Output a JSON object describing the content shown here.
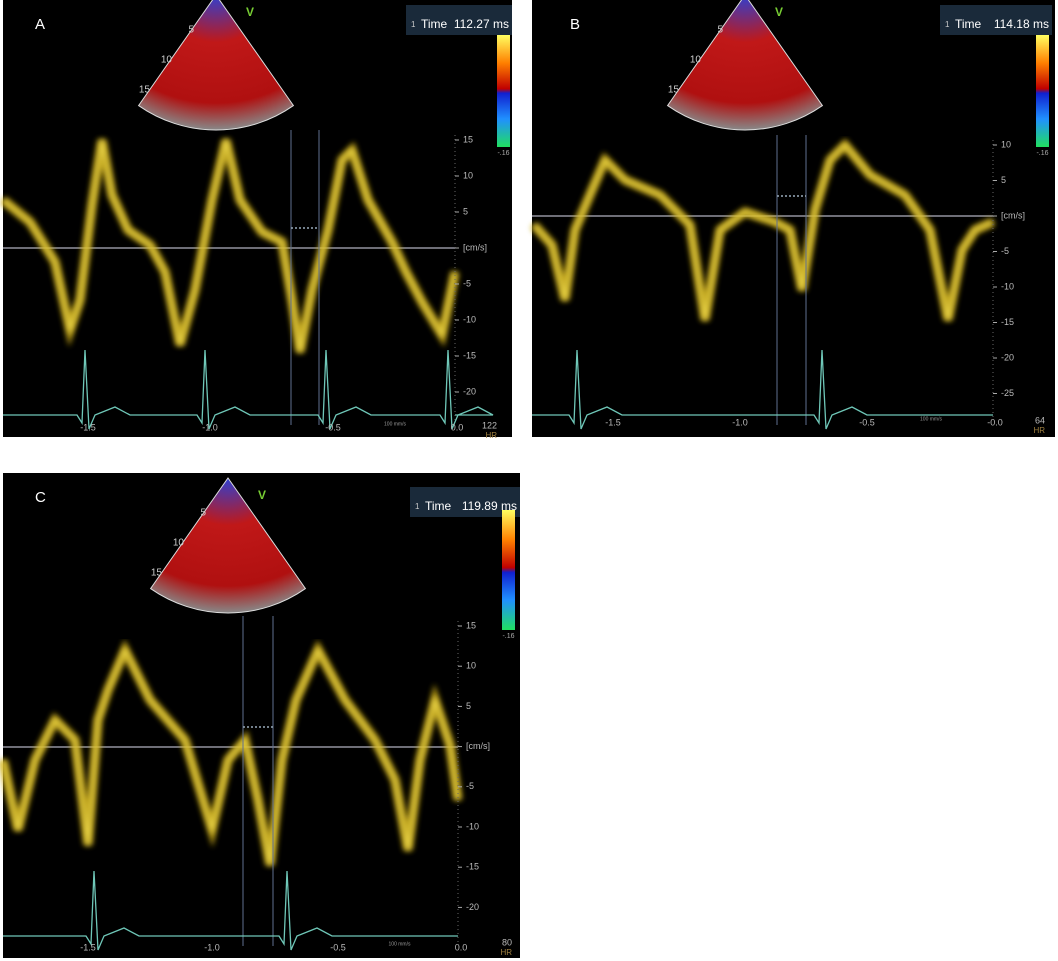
{
  "panels": [
    {
      "label": "A",
      "time_index": "1",
      "time_label": "Time",
      "time_value": "112.27 ms",
      "probe_marker": "V",
      "depth_ticks": [
        "5",
        "10",
        "15"
      ],
      "colorbar_min": "-.16",
      "y_ticks": [
        "15",
        "10",
        "5",
        "[cm/s]",
        "-5",
        "-10",
        "-15",
        "-20"
      ],
      "x_ticks": [
        "-1.5",
        "-1.0",
        "-0.5",
        "0.0"
      ],
      "sweep_speed": "100 mm/s",
      "hr_value": "122",
      "hr_label": "HR"
    },
    {
      "label": "B",
      "time_index": "1",
      "time_label": "Time",
      "time_value": "114.18 ms",
      "probe_marker": "V",
      "depth_ticks": [
        "5",
        "10",
        "15"
      ],
      "colorbar_min": "-.16",
      "y_ticks": [
        "10",
        "5",
        "[cm/s]",
        "-5",
        "-10",
        "-15",
        "-20",
        "-25"
      ],
      "x_ticks": [
        "-1.5",
        "-1.0",
        "-0.5",
        "-0.0"
      ],
      "sweep_speed": "100 mm/s",
      "hr_value": "64",
      "hr_label": "HR"
    },
    {
      "label": "C",
      "time_index": "1",
      "time_label": "Time",
      "time_value": "119.89 ms",
      "probe_marker": "V",
      "depth_ticks": [
        "5",
        "10",
        "15"
      ],
      "colorbar_min": "-.16",
      "y_ticks": [
        "15",
        "10",
        "5",
        "[cm/s]",
        "-5",
        "-10",
        "-15",
        "-20"
      ],
      "x_ticks": [
        "-1.5",
        "-1.0",
        "-0.5",
        "0.0"
      ],
      "sweep_speed": "100 mm/s",
      "hr_value": "80",
      "hr_label": "HR"
    }
  ]
}
